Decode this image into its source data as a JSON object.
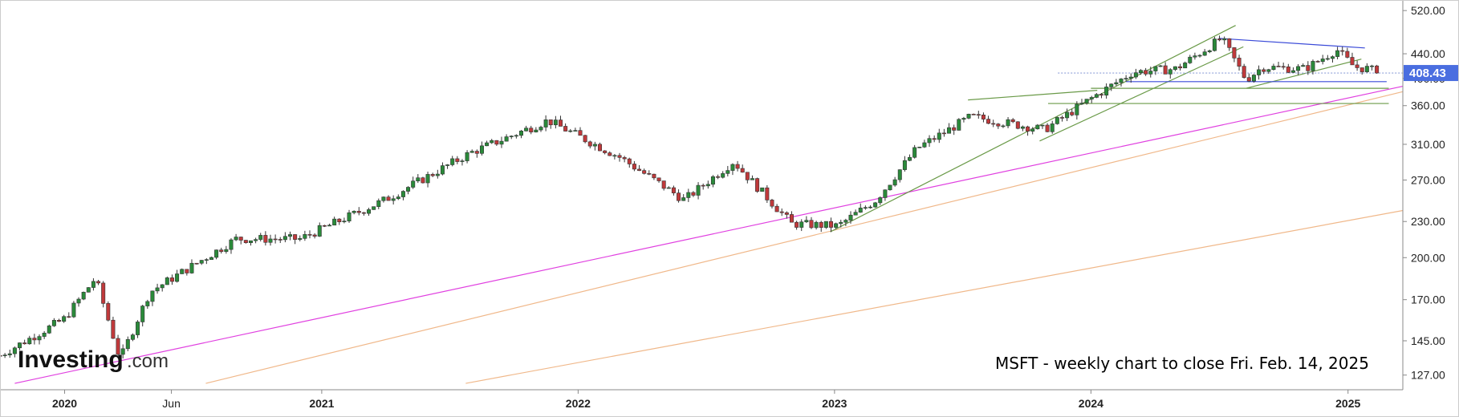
{
  "chart_data": {
    "type": "candlestick",
    "symbol": "MSFT",
    "annotation": "MSFT - weekly chart to close Fri. Feb. 14, 2025",
    "y_axis": {
      "scale": "log",
      "ylim": [
        120,
        535
      ],
      "ticks": [
        "520.00",
        "440.00",
        "400.00",
        "360.00",
        "310.00",
        "270.00",
        "230.00",
        "200.00",
        "170.00",
        "145.00",
        "127.00"
      ]
    },
    "x_axis": {
      "range": [
        "2019-10-01",
        "2025-03-20"
      ],
      "ticks": [
        {
          "date": "2020-01-01",
          "label": "2020",
          "bold": true
        },
        {
          "date": "2020-06-01",
          "label": "Jun",
          "bold": false
        },
        {
          "date": "2021-01-01",
          "label": "2021",
          "bold": true
        },
        {
          "date": "2022-01-01",
          "label": "2022",
          "bold": true
        },
        {
          "date": "2023-01-01",
          "label": "2023",
          "bold": true
        },
        {
          "date": "2024-01-01",
          "label": "2024",
          "bold": true
        },
        {
          "date": "2025-01-01",
          "label": "2025",
          "bold": true
        }
      ]
    },
    "last_price": {
      "value": 408.43,
      "label": "408.43"
    },
    "grid": false,
    "anchors": [
      [
        "2019-10-01",
        137
      ],
      [
        "2020-01-01",
        158
      ],
      [
        "2020-02-14",
        185
      ],
      [
        "2020-03-20",
        135
      ],
      [
        "2020-05-01",
        175
      ],
      [
        "2020-09-01",
        215
      ],
      [
        "2020-12-01",
        215
      ],
      [
        "2021-04-01",
        250
      ],
      [
        "2021-08-01",
        300
      ],
      [
        "2021-11-19",
        340
      ],
      [
        "2022-03-01",
        295
      ],
      [
        "2022-06-01",
        250
      ],
      [
        "2022-08-10",
        290
      ],
      [
        "2022-11-01",
        228
      ],
      [
        "2023-01-06",
        226
      ],
      [
        "2023-03-01",
        250
      ],
      [
        "2023-04-28",
        305
      ],
      [
        "2023-07-14",
        345
      ],
      [
        "2023-10-27",
        328
      ],
      [
        "2024-01-01",
        370
      ],
      [
        "2024-03-01",
        410
      ],
      [
        "2024-05-01",
        415
      ],
      [
        "2024-07-05",
        467
      ],
      [
        "2024-08-09",
        398
      ],
      [
        "2024-09-01",
        418
      ],
      [
        "2024-11-01",
        415
      ],
      [
        "2024-12-16",
        447
      ],
      [
        "2025-01-10",
        418
      ],
      [
        "2025-01-31",
        415
      ],
      [
        "2025-02-14",
        408.43
      ]
    ],
    "trendlines": [
      {
        "color": "#e040e0",
        "from": [
          "2019-10-22",
          123
        ],
        "to": [
          "2025-03-20",
          388
        ]
      },
      {
        "color": "#f0b88a",
        "from": [
          "2020-07-20",
          123
        ],
        "to": [
          "2025-03-20",
          380
        ]
      },
      {
        "color": "#f0b88a",
        "from": [
          "2021-07-25",
          123
        ],
        "to": [
          "2025-03-20",
          240
        ]
      },
      {
        "color": "#6a9a48",
        "from": [
          "2022-12-26",
          221
        ],
        "to": [
          "2024-07-25",
          491
        ]
      },
      {
        "color": "#6a9a48",
        "from": [
          "2023-10-20",
          314
        ],
        "to": [
          "2024-08-05",
          452
        ]
      },
      {
        "color": "#6a9a48",
        "from": [
          "2024-08-09",
          385
        ],
        "to": [
          "2025-01-20",
          431
        ]
      },
      {
        "color": "#6a9a48",
        "from": [
          "2023-07-10",
          368
        ],
        "to": [
          "2024-01-10",
          382
        ]
      },
      {
        "color": "#6a9a48",
        "from": [
          "2024-01-01",
          385
        ],
        "to": [
          "2025-02-28",
          385
        ]
      },
      {
        "color": "#6a9a48",
        "from": [
          "2023-11-01",
          363
        ],
        "to": [
          "2025-02-28",
          363
        ]
      },
      {
        "color": "#3a4ad8",
        "from": [
          "2024-07-01",
          467
        ],
        "to": [
          "2025-01-25",
          450
        ]
      },
      {
        "color": "#3a4ad8",
        "from": [
          "2024-02-20",
          395
        ],
        "to": [
          "2025-02-25",
          395
        ]
      },
      {
        "color": "#8fa0d8",
        "from": [
          "2023-11-15",
          408.43
        ],
        "to": [
          "2025-03-20",
          408.43
        ],
        "dashed": true
      }
    ]
  },
  "brand": {
    "name": "Investing",
    "suffix": ".com"
  },
  "colors": {
    "up": "#2a8a3a",
    "down": "#c0393b",
    "badge": "#4a6ee0"
  }
}
